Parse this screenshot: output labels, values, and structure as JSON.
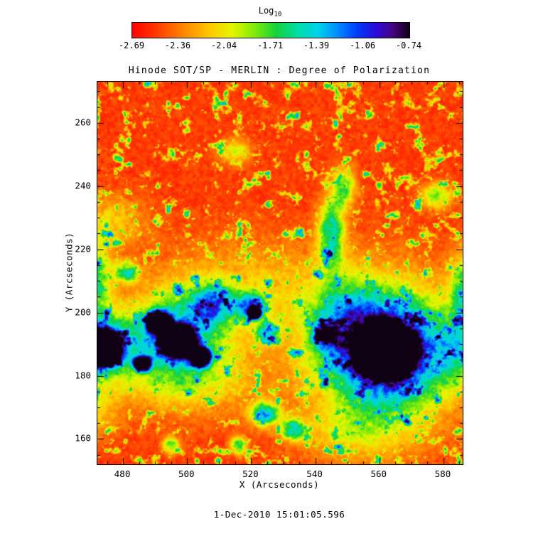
{
  "page": {
    "background": "#ffffff"
  },
  "colorbar": {
    "label_main": "Log",
    "label_sub": "10",
    "ticks": [
      "-2.69",
      "-2.36",
      "-2.04",
      "-1.71",
      "-1.39",
      "-1.06",
      "-0.74"
    ],
    "palette": [
      {
        "t": 0.0,
        "rgb": [
          255,
          0,
          0
        ]
      },
      {
        "t": 0.09,
        "rgb": [
          255,
          60,
          0
        ]
      },
      {
        "t": 0.18,
        "rgb": [
          255,
          130,
          0
        ]
      },
      {
        "t": 0.28,
        "rgb": [
          255,
          200,
          0
        ]
      },
      {
        "t": 0.36,
        "rgb": [
          230,
          245,
          0
        ]
      },
      {
        "t": 0.44,
        "rgb": [
          130,
          235,
          10
        ]
      },
      {
        "t": 0.52,
        "rgb": [
          20,
          210,
          60
        ]
      },
      {
        "t": 0.6,
        "rgb": [
          0,
          220,
          170
        ]
      },
      {
        "t": 0.67,
        "rgb": [
          0,
          210,
          235
        ]
      },
      {
        "t": 0.74,
        "rgb": [
          0,
          140,
          255
        ]
      },
      {
        "t": 0.81,
        "rgb": [
          0,
          60,
          250
        ]
      },
      {
        "t": 0.88,
        "rgb": [
          45,
          10,
          215
        ]
      },
      {
        "t": 0.94,
        "rgb": [
          70,
          5,
          130
        ]
      },
      {
        "t": 1.0,
        "rgb": [
          15,
          0,
          20
        ]
      }
    ]
  },
  "chart_data": {
    "type": "heatmap",
    "title": "Hinode SOT/SP - MERLIN : Degree of Polarization",
    "xlabel": "X (Arcseconds)",
    "ylabel": "Y (Arcseconds)",
    "colorbar_label": "Log10",
    "colorbar_ticks": [
      -2.69,
      -2.36,
      -2.04,
      -1.71,
      -1.39,
      -1.06,
      -0.74
    ],
    "value_label": "Log10 degree of polarization",
    "x_range": [
      472,
      586
    ],
    "y_range": [
      152,
      273
    ],
    "x_ticks": [
      480,
      500,
      520,
      540,
      560,
      580
    ],
    "y_ticks": [
      160,
      180,
      200,
      220,
      240,
      260
    ],
    "x_minor_step": 5,
    "y_minor_step": 5,
    "timestamp": "1-Dec-2010 15:01:05.596",
    "background_value": "quiet sun, low polarization (red) with granular network mottles (green)",
    "features": [
      {
        "name": "main-sunspot-umbra",
        "cx": 562,
        "cy": 188,
        "rx": 11.5,
        "ry": 11,
        "peak": 1.1,
        "k": 9,
        "seed": 11
      },
      {
        "name": "main-sunspot-penumbra",
        "cx": 562,
        "cy": 188,
        "rx": 21,
        "ry": 20,
        "peak": 0.72,
        "k": 4.2,
        "seed": 23
      },
      {
        "name": "main-sunspot-halo",
        "cx": 562,
        "cy": 188,
        "rx": 28,
        "ry": 26,
        "peak": 0.22,
        "k": 3,
        "seed": 37
      },
      {
        "name": "west-spot-a",
        "cx": 497,
        "cy": 191,
        "rx": 7,
        "ry": 6.5,
        "peak": 1.0,
        "k": 7,
        "seed": 41
      },
      {
        "name": "west-spot-b",
        "cx": 491,
        "cy": 197,
        "rx": 5,
        "ry": 4.5,
        "peak": 0.95,
        "k": 7,
        "seed": 43
      },
      {
        "name": "west-spot-c",
        "cx": 504,
        "cy": 186,
        "rx": 4,
        "ry": 4,
        "peak": 0.9,
        "k": 7,
        "seed": 47
      },
      {
        "name": "west-spot-d",
        "cx": 486,
        "cy": 184,
        "rx": 3.5,
        "ry": 3,
        "peak": 0.85,
        "k": 7,
        "seed": 53
      },
      {
        "name": "west-blue-mass",
        "cx": 497,
        "cy": 193,
        "rx": 15,
        "ry": 13,
        "peak": 0.6,
        "k": 3.2,
        "seed": 59
      },
      {
        "name": "west-blue-ext",
        "cx": 508,
        "cy": 203,
        "rx": 7,
        "ry": 6,
        "peak": 0.5,
        "k": 3.5,
        "seed": 61
      },
      {
        "name": "edge-spot",
        "cx": 473,
        "cy": 189,
        "rx": 8,
        "ry": 7.5,
        "peak": 1.05,
        "k": 8,
        "seed": 67
      },
      {
        "name": "edge-spot-halo",
        "cx": 473,
        "cy": 190,
        "rx": 12,
        "ry": 11,
        "peak": 0.55,
        "k": 3.5,
        "seed": 71
      },
      {
        "name": "left-blue-column",
        "cx": 471,
        "cy": 211,
        "rx": 5,
        "ry": 11,
        "peak": 0.5,
        "k": 3,
        "seed": 73
      },
      {
        "name": "blue-patch-1",
        "cx": 481,
        "cy": 213,
        "rx": 4,
        "ry": 3.5,
        "peak": 0.5,
        "k": 4,
        "seed": 79
      },
      {
        "name": "blue-patch-2",
        "cx": 520,
        "cy": 202,
        "rx": 5,
        "ry": 4.5,
        "peak": 0.55,
        "k": 4,
        "seed": 83
      },
      {
        "name": "dark-dot",
        "cx": 521,
        "cy": 200,
        "rx": 2.5,
        "ry": 2.5,
        "peak": 0.8,
        "k": 8,
        "seed": 89
      },
      {
        "name": "blue-patch-3",
        "cx": 525,
        "cy": 194,
        "rx": 4,
        "ry": 3.5,
        "peak": 0.5,
        "k": 4,
        "seed": 97
      },
      {
        "name": "bridge-blue",
        "cx": 543,
        "cy": 193,
        "rx": 4,
        "ry": 4,
        "peak": 0.5,
        "k": 4,
        "seed": 101
      },
      {
        "name": "streak-blue",
        "cx": 545,
        "cy": 226,
        "rx": 4,
        "ry": 11,
        "peak": 0.55,
        "k": 3.2,
        "seed": 103
      },
      {
        "name": "streak-blue-2",
        "cx": 549,
        "cy": 240,
        "rx": 3.5,
        "ry": 6,
        "peak": 0.45,
        "k": 3.2,
        "seed": 107
      },
      {
        "name": "south-blue-1",
        "cx": 524,
        "cy": 168,
        "rx": 5,
        "ry": 4,
        "peak": 0.55,
        "k": 4,
        "seed": 109
      },
      {
        "name": "south-blue-2",
        "cx": 533,
        "cy": 163,
        "rx": 4,
        "ry": 3.5,
        "peak": 0.5,
        "k": 4,
        "seed": 113
      },
      {
        "name": "south-blue-3",
        "cx": 516,
        "cy": 158,
        "rx": 3,
        "ry": 3,
        "peak": 0.45,
        "k": 4,
        "seed": 127
      },
      {
        "name": "south-blue-4",
        "cx": 495,
        "cy": 158,
        "rx": 3,
        "ry": 3,
        "peak": 0.4,
        "k": 4,
        "seed": 131
      },
      {
        "name": "right-edge-column",
        "cx": 586,
        "cy": 206,
        "rx": 4,
        "ry": 12,
        "peak": 0.45,
        "k": 3,
        "seed": 137
      },
      {
        "name": "ne-green-patch",
        "cx": 578,
        "cy": 237,
        "rx": 5,
        "ry": 4,
        "peak": 0.4,
        "k": 3.5,
        "seed": 139
      },
      {
        "name": "plage-south",
        "cx": 500,
        "cy": 178,
        "rx": 22,
        "ry": 10,
        "peak": 0.26,
        "k": 2.6,
        "seed": 149
      },
      {
        "name": "plage-mid",
        "cx": 518,
        "cy": 208,
        "rx": 26,
        "ry": 14,
        "peak": 0.22,
        "k": 2.6,
        "seed": 151
      },
      {
        "name": "plage-bridge",
        "cx": 548,
        "cy": 198,
        "rx": 10,
        "ry": 13,
        "peak": 0.28,
        "k": 3,
        "seed": 157
      },
      {
        "name": "plage-west",
        "cx": 476,
        "cy": 229,
        "rx": 10,
        "ry": 8,
        "peak": 0.24,
        "k": 3,
        "seed": 163
      },
      {
        "name": "plage-se",
        "cx": 552,
        "cy": 162,
        "rx": 16,
        "ry": 8,
        "peak": 0.22,
        "k": 2.8,
        "seed": 167
      },
      {
        "name": "plage-east",
        "cx": 584,
        "cy": 187,
        "rx": 6,
        "ry": 9,
        "peak": 0.28,
        "k": 3,
        "seed": 173
      },
      {
        "name": "plage-sw",
        "cx": 470,
        "cy": 170,
        "rx": 8,
        "ry": 9,
        "peak": 0.22,
        "k": 3,
        "seed": 179
      },
      {
        "name": "green-top-patch",
        "cx": 515,
        "cy": 251,
        "rx": 5,
        "ry": 4,
        "peak": 0.3,
        "k": 3.5,
        "seed": 181
      }
    ]
  }
}
